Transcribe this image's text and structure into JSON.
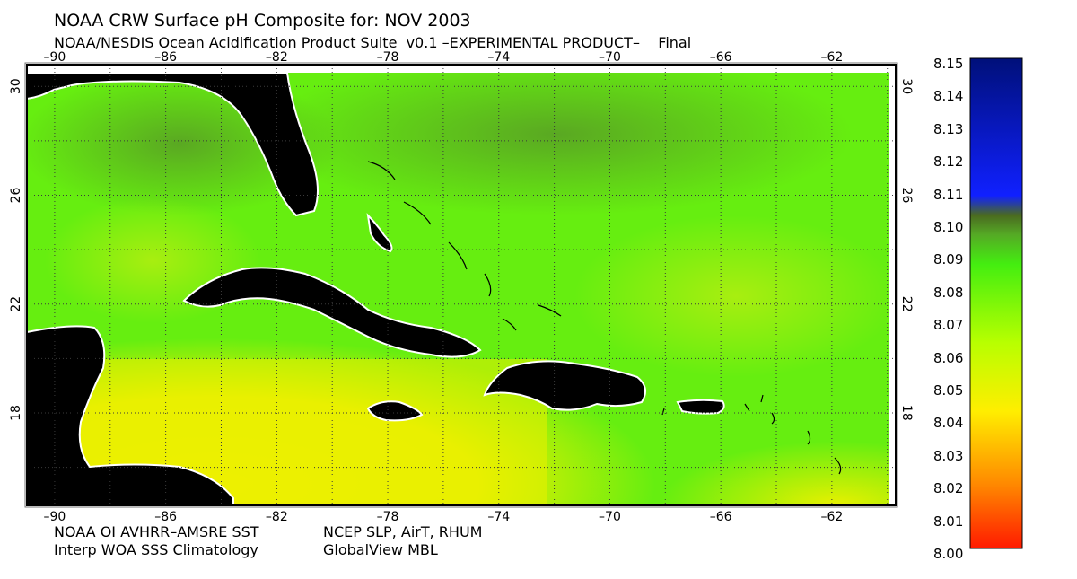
{
  "header": {
    "title": "NOAA CRW Surface pH Composite for: NOV 2003",
    "subtitle": "NOAA/NESDIS Ocean Acidification Product Suite  v0.1 –EXPERIMENTAL PRODUCT–    Final"
  },
  "footer": {
    "sst": "NOAA OI AVHRR–AMSRE SST",
    "met": "NCEP SLP, AirT, RHUM",
    "sss": "Interp WOA SSS Climatology",
    "mbl": "GlobalView MBL"
  },
  "map": {
    "lon_range": [
      -91,
      -59.7
    ],
    "lat_range": [
      14.6,
      30.8
    ],
    "lon_ticks": [
      -90,
      -86,
      -82,
      -78,
      -74,
      -70,
      -66,
      -62
    ],
    "lon_labels": [
      "–90",
      "–86",
      "–82",
      "–78",
      "–74",
      "–70",
      "–66",
      "–62"
    ],
    "lat_ticks": [
      30,
      26,
      22,
      18
    ],
    "lat_labels": [
      "30",
      "26",
      "22",
      "18"
    ],
    "grid": "dotted",
    "colors": {
      "land": "#000000",
      "coast": "#ffffff",
      "grid": "#3a3a3a"
    }
  },
  "colorbar": {
    "min": 8.0,
    "max": 8.15,
    "labels": [
      "8.15",
      "8.14",
      "8.13",
      "8.12",
      "8.11",
      "8.10",
      "8.09",
      "8.08",
      "8.07",
      "8.06",
      "8.05",
      "8.04",
      "8.03",
      "8.02",
      "8.01",
      "8.00"
    ],
    "colors": [
      "#ff1a00",
      "#ff8800",
      "#ffee00",
      "#b8ff00",
      "#44ee10",
      "#4a6a20",
      "#1020ff",
      "#00107a"
    ]
  }
}
